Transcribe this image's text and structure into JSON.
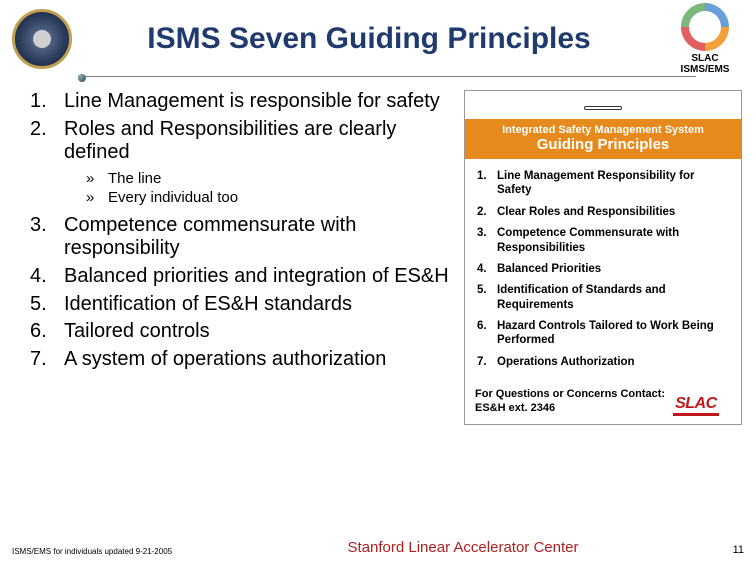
{
  "title": "ISMS Seven Guiding Principles",
  "badge": {
    "line1": "SLAC",
    "line2": "ISMS/EMS"
  },
  "principles": [
    {
      "n": "1.",
      "text": "Line Management is responsible for safety"
    },
    {
      "n": "2.",
      "text": "Roles and Responsibilities are clearly defined"
    }
  ],
  "subpoints": [
    {
      "bullet": "»",
      "text": "The line"
    },
    {
      "bullet": "»",
      "text": "Every individual too"
    }
  ],
  "principles2": [
    {
      "n": "3.",
      "text": "Competence commensurate with responsibility"
    },
    {
      "n": "4.",
      "text": "Balanced priorities and integration of ES&H"
    },
    {
      "n": "5.",
      "text": "Identification of ES&H standards"
    },
    {
      "n": "6.",
      "text": "Tailored controls"
    },
    {
      "n": "7.",
      "text": "A system of operations authorization"
    }
  ],
  "card": {
    "chip": " ",
    "banner1": "Integrated Safety Management System",
    "banner2": "Guiding Principles",
    "items": [
      {
        "n": "1.",
        "t": "Line Management Responsibility for Safety"
      },
      {
        "n": "2.",
        "t": "Clear Roles and Responsibilities"
      },
      {
        "n": "3.",
        "t": "Competence Commensurate with Responsibilities"
      },
      {
        "n": "4.",
        "t": "Balanced Priorities"
      },
      {
        "n": "5.",
        "t": "Identification of Standards and Requirements"
      },
      {
        "n": "6.",
        "t": "Hazard Controls Tailored to Work Being Performed"
      },
      {
        "n": "7.",
        "t": "Operations Authorization"
      }
    ],
    "contact1": "For Questions or Concerns Contact:",
    "contact2": "ES&H ext. 2346",
    "logo": "SLAC"
  },
  "footer": {
    "stamp": "ISMS/EMS for individuals updated 9-21-2005",
    "org": "Stanford Linear Accelerator Center",
    "page": "11"
  },
  "colors": {
    "title": "#1f3a6e",
    "banner": "#e78a1e",
    "org": "#b02020",
    "logo": "#c01818"
  }
}
